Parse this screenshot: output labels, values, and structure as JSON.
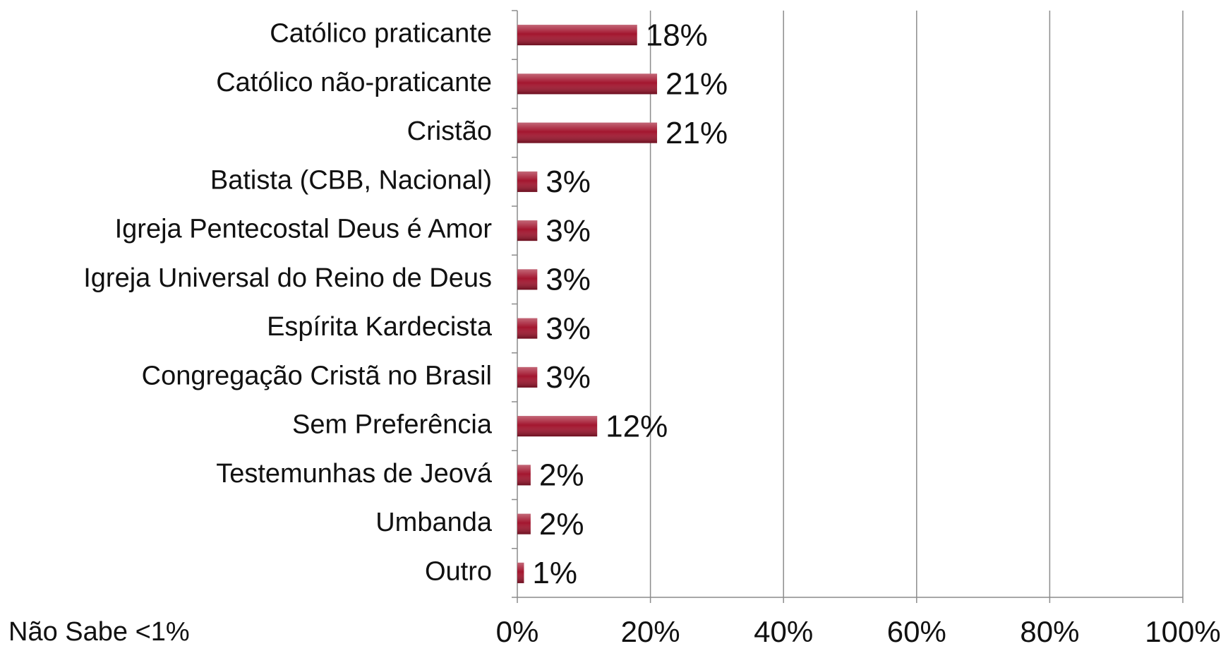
{
  "chart_data": {
    "type": "bar",
    "orientation": "horizontal",
    "categories": [
      "Católico praticante",
      "Católico não-praticante",
      "Cristão",
      "Batista  (CBB, Nacional)",
      "Igreja Pentecostal Deus é Amor",
      "Igreja Universal do Reino de Deus",
      "Espírita Kardecista",
      "Congregação  Cristã  no Brasil",
      "Sem Preferência",
      "Testemunhas de Jeová",
      "Umbanda",
      "Outro"
    ],
    "values": [
      18,
      21,
      21,
      3,
      3,
      3,
      3,
      3,
      12,
      2,
      2,
      1
    ],
    "value_labels": [
      "18%",
      "21%",
      "21%",
      "3%",
      "3%",
      "3%",
      "3%",
      "3%",
      "12%",
      "2%",
      "2%",
      "1%"
    ],
    "color": "#a3162f",
    "xlim": [
      0,
      100
    ],
    "xticks": [
      {
        "value": 0,
        "label": "0%"
      },
      {
        "value": 20,
        "label": "20%"
      },
      {
        "value": 40,
        "label": "40%"
      },
      {
        "value": 60,
        "label": "60%"
      },
      {
        "value": 80,
        "label": "80%"
      },
      {
        "value": 100,
        "label": "100%"
      }
    ],
    "grid": true,
    "annotation": "Não Sabe <1%"
  }
}
